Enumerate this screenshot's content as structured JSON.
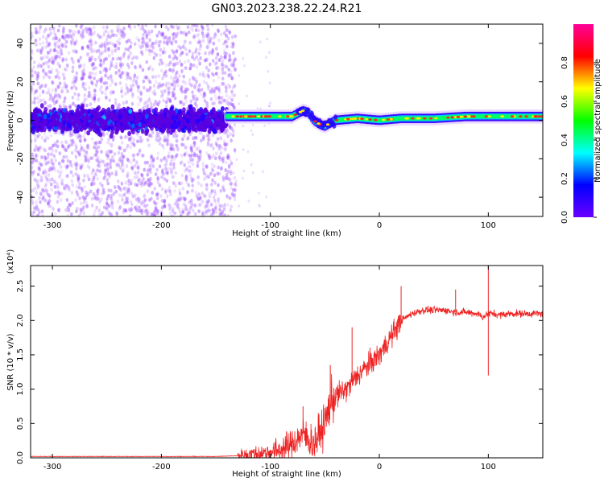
{
  "title": "GN03.2023.238.22.24.R21",
  "colorbar": {
    "label": "Normalized spectral amplitude",
    "ticks": [
      "0.0",
      "0.2",
      "0.4",
      "0.6",
      "0.8"
    ],
    "stops": [
      "#6a00ff",
      "#0000ff",
      "#00ffff",
      "#00ff00",
      "#ffff00",
      "#ff0000",
      "#ff0099"
    ]
  },
  "chart_data": [
    {
      "type": "heatmap",
      "name": "spectrogram",
      "xlabel": "Height of straight line (km)",
      "ylabel": "Frequency (Hz)",
      "xlim": [
        -320,
        150
      ],
      "ylim": [
        -50,
        50
      ],
      "xticks": [
        -300,
        -200,
        -100,
        0,
        100
      ],
      "yticks": [
        -40,
        -20,
        0,
        20,
        40
      ],
      "signal_track": {
        "x": [
          -140,
          -120,
          -100,
          -80,
          -70,
          -65,
          -60,
          -55,
          -50,
          -40,
          -20,
          0,
          20,
          50,
          80,
          100,
          120,
          150
        ],
        "y": [
          2,
          2,
          2,
          2,
          5,
          4,
          0,
          -2,
          -3,
          0,
          1,
          0,
          1,
          1,
          2,
          2,
          2,
          2
        ]
      },
      "noise_region": [
        -320,
        -140
      ]
    },
    {
      "type": "line",
      "name": "snr",
      "xlabel": "Height of straight line (km)",
      "ylabel": "SNR (10 * v/v)",
      "yscale_label": "(x10⁴)",
      "xlim": [
        -320,
        150
      ],
      "ylim": [
        0,
        2.8
      ],
      "xticks": [
        -300,
        -200,
        -100,
        0,
        100
      ],
      "yticks": [
        0.0,
        0.5,
        1.0,
        1.5,
        2.0,
        2.5
      ],
      "series": [
        {
          "color": "#ee2222",
          "x": [
            -320,
            -200,
            -150,
            -130,
            -110,
            -100,
            -90,
            -80,
            -70,
            -60,
            -50,
            -45,
            -40,
            -30,
            -20,
            -10,
            0,
            10,
            20,
            30,
            40,
            50,
            60,
            70,
            80,
            90,
            95,
            100,
            105,
            110,
            120,
            130,
            140,
            150
          ],
          "y": [
            0.02,
            0.02,
            0.02,
            0.03,
            0.06,
            0.08,
            0.12,
            0.2,
            0.35,
            0.2,
            0.5,
            0.8,
            0.9,
            1.0,
            1.2,
            1.35,
            1.5,
            1.75,
            2.0,
            2.1,
            2.15,
            2.15,
            2.15,
            2.12,
            2.12,
            2.1,
            2.05,
            2.1,
            2.1,
            2.08,
            2.1,
            2.1,
            2.1,
            2.1
          ]
        }
      ],
      "spikes": [
        {
          "x": -70,
          "y": 0.75
        },
        {
          "x": -45,
          "y": 1.35
        },
        {
          "x": -25,
          "y": 1.9
        },
        {
          "x": 20,
          "y": 2.5
        },
        {
          "x": 70,
          "y": 2.45
        },
        {
          "x": 100,
          "y": 2.8
        },
        {
          "x": 100,
          "y": 1.2
        }
      ]
    }
  ]
}
